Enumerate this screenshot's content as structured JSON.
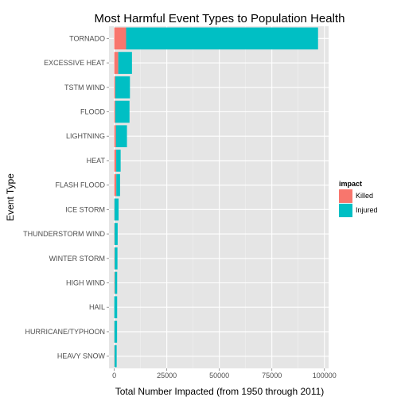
{
  "chart_data": {
    "type": "bar",
    "orientation": "horizontal",
    "stacked": true,
    "title": "Most Harmful Event Types to Population Health",
    "xlabel": "Total Number Impacted (from 1950 through 2011)",
    "ylabel": "Event Type",
    "xlim": [
      -2500,
      102000
    ],
    "xticks": [
      0,
      25000,
      50000,
      75000,
      100000
    ],
    "xtick_labels": [
      "0",
      "25000",
      "50000",
      "75000",
      "100000"
    ],
    "grid": true,
    "legend": {
      "title": "impact",
      "placement": "right"
    },
    "categories": [
      "TORNADO",
      "EXCESSIVE HEAT",
      "TSTM WIND",
      "FLOOD",
      "LIGHTNING",
      "HEAT",
      "FLASH FLOOD",
      "ICE STORM",
      "THUNDERSTORM WIND",
      "WINTER STORM",
      "HIGH WIND",
      "HAIL",
      "HURRICANE/TYPHOON",
      "HEAVY SNOW"
    ],
    "series": [
      {
        "name": "Killed",
        "color": "#F8766D",
        "values": [
          5633,
          1903,
          504,
          470,
          816,
          937,
          978,
          89,
          133,
          206,
          248,
          15,
          64,
          127
        ]
      },
      {
        "name": "Injured",
        "color": "#00BFC4",
        "values": [
          91346,
          6525,
          6957,
          6789,
          5230,
          2100,
          1777,
          1975,
          1488,
          1321,
          1137,
          1361,
          1275,
          1021
        ]
      }
    ]
  }
}
